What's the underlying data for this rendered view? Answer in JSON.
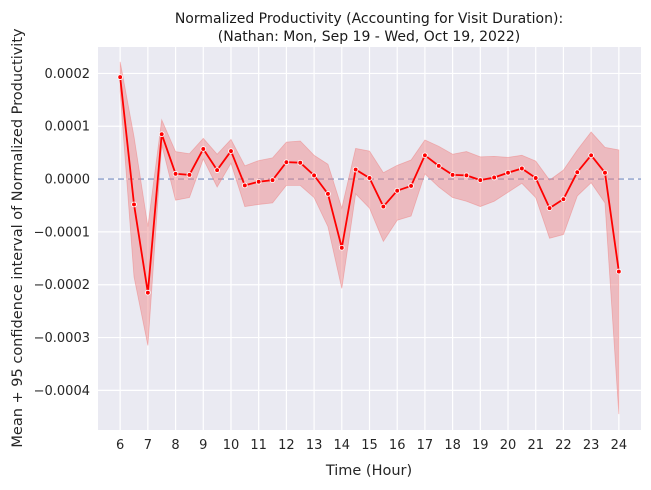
{
  "chart_data": {
    "type": "line",
    "title": "Normalized Productivity (Accounting for Visit Duration):",
    "subtitle": "(Nathan: Mon, Sep 19 - Wed, Oct 19, 2022)",
    "xlabel": "Time (Hour)",
    "ylabel": "Mean + 95 confidence interval of Normalized Productivity",
    "xlim": [
      5.2,
      24.8
    ],
    "ylim": [
      -0.000475,
      0.00025
    ],
    "x_ticks": [
      6,
      7,
      8,
      9,
      10,
      11,
      12,
      13,
      14,
      15,
      16,
      17,
      18,
      19,
      20,
      21,
      22,
      23,
      24
    ],
    "y_ticks": [
      0.0002,
      0.0001,
      0.0,
      -0.0001,
      -0.0002,
      -0.0003,
      -0.0004
    ],
    "y_tick_labels": [
      "0.0002",
      "0.0001",
      "0.0000",
      "−0.0001",
      "−0.0002",
      "−0.0003",
      "−0.0004"
    ],
    "grid": true,
    "reference_line": {
      "y": 0,
      "style": "dashed",
      "color": "#8da0cb"
    },
    "colors": {
      "background": "#eaeaf2",
      "line": "#ff0000",
      "band": "#f08080",
      "grid": "#ffffff"
    },
    "series": [
      {
        "x": [
          6,
          6.5,
          7,
          7.5,
          8,
          8.5,
          9,
          9.5,
          10,
          10.5,
          11,
          11.5,
          12,
          12.5,
          13,
          13.5,
          14,
          14.5,
          15,
          15.5,
          16,
          16.5,
          17,
          17.5,
          18,
          18.5,
          19,
          19.5,
          20,
          20.5,
          21,
          21.5,
          22,
          22.5,
          23,
          23.5,
          24
        ],
        "mean": [
          0.000193,
          -4.8e-05,
          -0.000215,
          8.5e-05,
          1e-05,
          8e-06,
          5.7e-05,
          1.7e-05,
          5.3e-05,
          -1.2e-05,
          -5e-06,
          -2e-06,
          3.2e-05,
          3.1e-05,
          7e-06,
          -2.8e-05,
          -0.00013,
          1.8e-05,
          2e-06,
          -5.2e-05,
          -2.2e-05,
          -1.3e-05,
          4.5e-05,
          2.5e-05,
          8e-06,
          7e-06,
          -2e-06,
          3e-06,
          1.2e-05,
          2e-05,
          2e-06,
          -5.5e-05,
          -3.8e-05,
          1.3e-05,
          4.5e-05,
          1.2e-05,
          -0.000175
        ],
        "lower": [
          0.000165,
          -0.000185,
          -0.000315,
          6.5e-05,
          -4e-05,
          -3.5e-05,
          3.8e-05,
          -1.5e-05,
          3e-05,
          -5.2e-05,
          -4.8e-05,
          -4.5e-05,
          -1.2e-05,
          -1.2e-05,
          -3.5e-05,
          -9e-05,
          -0.000207,
          -2.8e-05,
          -5.5e-05,
          -0.000118,
          -7.8e-05,
          -7e-05,
          1e-05,
          -1.5e-05,
          -3.5e-05,
          -4.2e-05,
          -5.2e-05,
          -4.2e-05,
          -2.5e-05,
          -8e-06,
          -3.5e-05,
          -0.000112,
          -0.000105,
          -3.2e-05,
          -7e-06,
          -4.5e-05,
          -0.000445
        ],
        "upper": [
          0.000222,
          8e-05,
          -9e-05,
          0.000112,
          5.2e-05,
          4.8e-05,
          7.7e-05,
          4.7e-05,
          7.5e-05,
          2.5e-05,
          3.5e-05,
          4e-05,
          7e-05,
          7.2e-05,
          4.5e-05,
          2.8e-05,
          -5.5e-05,
          5.8e-05,
          5.3e-05,
          1.2e-05,
          2.6e-05,
          3.6e-05,
          7.4e-05,
          6.2e-05,
          4.7e-05,
          5.2e-05,
          4.2e-05,
          4.3e-05,
          4.1e-05,
          4.5e-05,
          3.4e-05,
          -2e-06,
          1.7e-05,
          5.5e-05,
          8.9e-05,
          6e-05,
          5.5e-05
        ]
      }
    ]
  }
}
